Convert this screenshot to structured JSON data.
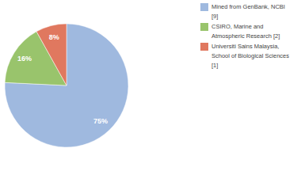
{
  "chart_data": {
    "type": "pie",
    "categories": [
      "Mined from GenBank, NCBI [9]",
      "CSIRO, Marine and Atmospheric Research [2]",
      "Universiti Sains Malaysia, School of Biological Sciences [1]"
    ],
    "values": [
      75,
      16,
      8
    ],
    "value_labels": [
      "75%",
      "16%",
      "8%"
    ],
    "colors": [
      "#9fb9df",
      "#99c46c",
      "#e0785f"
    ],
    "data_labels": true,
    "legend": "top-right"
  }
}
